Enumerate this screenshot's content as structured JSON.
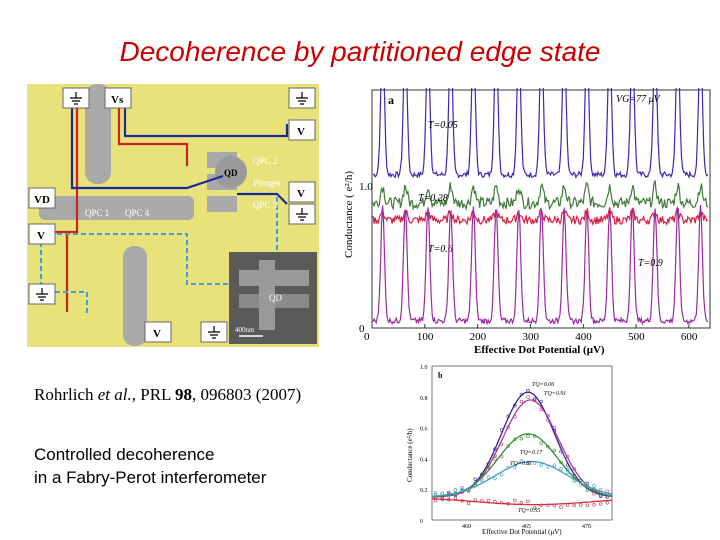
{
  "slide": {
    "title": "Decoherence by partitioned edge state",
    "citation": {
      "authors": "Rohrlich",
      "etal": "et al.",
      "journal": ", PRL ",
      "volume": "98",
      "rest": ", 096803 (2007)"
    },
    "caption_line1": "Controlled decoherence",
    "caption_line2": "in a Fabry-Perot interferometer"
  },
  "device": {
    "labels": {
      "vs": "Vs",
      "vd": "VD",
      "v_right1": "V",
      "v_right2": "V",
      "v_left": "V",
      "v_bottom": "V",
      "qpc1": "QPC 1",
      "qpc2": "QPC 2",
      "qpc3": "QPC 3",
      "qpc4": "QPC 4",
      "qd": "QD",
      "plunger": "Plunger",
      "inset_qd": "QD",
      "scale": "400nm"
    },
    "colors": {
      "background": "#e8e27a",
      "gate": "#a9a9a9",
      "red_path": "#cc2222",
      "blue_path": "#1a2a9a",
      "cyan_path": "#3fa0e0"
    }
  },
  "chart_data": [
    {
      "type": "line",
      "panel_label": "a",
      "annotation": "VG=77 μV",
      "ylabel": "Conductance ( e²/h)",
      "xlabel": "Effective Dot Potential (μV)",
      "xticks": [
        "0",
        "100",
        "200",
        "300",
        "400",
        "500",
        "600"
      ],
      "yticks": [
        "0",
        "1.0"
      ],
      "xlim": [
        0,
        640
      ],
      "series": [
        {
          "name": "T=0.05",
          "color": "#3a2ab0",
          "baseline": 1.08,
          "amplitude": 0.95,
          "noise": 0.02
        },
        {
          "name": "T=0.28",
          "color": "#3f7a3a",
          "baseline": 0.88,
          "amplitude": 0.12,
          "noise": 0.04
        },
        {
          "name": "T=0.6",
          "color": "#d62040",
          "baseline": 0.76,
          "amplitude": 0.06,
          "noise": 0.03
        },
        {
          "name": "T=0.9",
          "color": "#9a2aa0",
          "baseline": 0.05,
          "amplitude": 0.8,
          "noise": 0.02
        }
      ],
      "peak_spacing": 43
    },
    {
      "type": "line",
      "panel_label": "b",
      "ylabel": "Conductance  (e²/h)",
      "xlabel": "Effective Dot Potential  (μV)",
      "xticks": [
        "460",
        "465",
        "470"
      ],
      "yticks": [
        "0",
        "0.2",
        "0.4",
        "0.6",
        "0.8",
        "1.0"
      ],
      "xlim": [
        457,
        472
      ],
      "ylim": [
        0,
        1.0
      ],
      "series": [
        {
          "name": "TQ=0.06",
          "color": "#2a2a90",
          "peak": 0.83,
          "center": 465,
          "width": 2.2
        },
        {
          "name": "TQ=0.91",
          "color": "#b03a9a",
          "peak": 0.78,
          "center": 465.2,
          "width": 2.3
        },
        {
          "name": "TQ=0.17",
          "color": "#3a8a3a",
          "peak": 0.56,
          "center": 465,
          "width": 2.5
        },
        {
          "name": "TQ=0.81",
          "color": "#40a0c0",
          "peak": 0.38,
          "center": 465.3,
          "width": 3.0
        },
        {
          "name": "TQ=0.55",
          "color": "#d03040",
          "peak": 0.1,
          "center": 465.5,
          "width": 5.0
        }
      ]
    }
  ]
}
